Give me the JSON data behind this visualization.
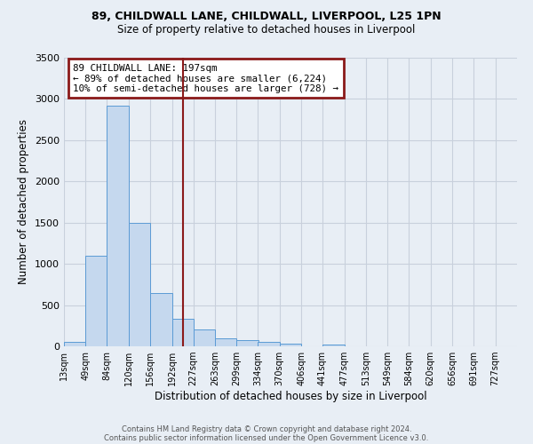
{
  "title_line1": "89, CHILDWALL LANE, CHILDWALL, LIVERPOOL, L25 1PN",
  "title_line2": "Size of property relative to detached houses in Liverpool",
  "xlabel": "Distribution of detached houses by size in Liverpool",
  "ylabel": "Number of detached properties",
  "bin_labels": [
    "13sqm",
    "49sqm",
    "84sqm",
    "120sqm",
    "156sqm",
    "192sqm",
    "227sqm",
    "263sqm",
    "299sqm",
    "334sqm",
    "370sqm",
    "406sqm",
    "441sqm",
    "477sqm",
    "513sqm",
    "549sqm",
    "584sqm",
    "620sqm",
    "656sqm",
    "691sqm",
    "727sqm"
  ],
  "bar_values": [
    50,
    1100,
    2920,
    1500,
    650,
    330,
    200,
    100,
    80,
    55,
    30,
    0,
    20,
    0,
    0,
    0,
    0,
    0,
    0,
    0,
    0
  ],
  "bar_left_edges": [
    13,
    49,
    84,
    120,
    156,
    192,
    227,
    263,
    299,
    334,
    370,
    406,
    441,
    477,
    513,
    549,
    584,
    620,
    656,
    691,
    727
  ],
  "bin_width": 36,
  "bar_color": "#c5d8ee",
  "bar_edge_color": "#5b9bd5",
  "vline_x": 210,
  "vline_color": "#8b1a1a",
  "ylim": [
    0,
    3500
  ],
  "yticks": [
    0,
    500,
    1000,
    1500,
    2000,
    2500,
    3000,
    3500
  ],
  "annotation_title": "89 CHILDWALL LANE: 197sqm",
  "annotation_line1": "← 89% of detached houses are smaller (6,224)",
  "annotation_line2": "10% of semi-detached houses are larger (728) →",
  "annotation_box_color": "#8b1a1a",
  "grid_color": "#c8d0dc",
  "bg_color": "#e8eef5",
  "footer1": "Contains HM Land Registry data © Crown copyright and database right 2024.",
  "footer2": "Contains public sector information licensed under the Open Government Licence v3.0.",
  "xlim_left": 13,
  "xlim_right": 763
}
